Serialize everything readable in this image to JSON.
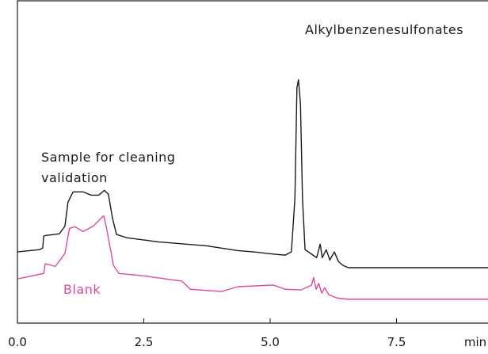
{
  "chart_data": {
    "type": "line",
    "x_label": "min",
    "annotations": [
      "Alkylbenzenesulfonates"
    ],
    "xlim": [
      0,
      9.31
    ],
    "ylim": [
      0,
      100
    ],
    "xticks": [
      {
        "value": 0,
        "label": "0.0"
      },
      2.5,
      {
        "value": 5,
        "label": "5.0"
      },
      7.5
    ],
    "series": [
      {
        "name": "Sample for cleaning validation",
        "color": "#1a1a1a",
        "x": [
          0.0,
          0.44,
          0.5,
          0.52,
          0.56,
          0.83,
          0.94,
          1.0,
          1.1,
          1.3,
          1.46,
          1.61,
          1.72,
          1.8,
          1.88,
          1.96,
          2.16,
          2.79,
          3.73,
          4.36,
          4.67,
          4.95,
          5.14,
          5.3,
          5.42,
          5.49,
          5.53,
          5.56,
          5.6,
          5.64,
          5.69,
          5.92,
          5.99,
          6.03,
          6.11,
          6.18,
          6.27,
          6.35,
          6.44,
          6.55,
          9.31
        ],
        "values": [
          22.1,
          22.8,
          23.3,
          27.0,
          27.2,
          27.7,
          30.1,
          37.5,
          40.7,
          40.7,
          39.7,
          39.7,
          41.2,
          40.0,
          32.6,
          27.5,
          26.5,
          25.2,
          24.0,
          22.5,
          22.1,
          21.6,
          21.3,
          21.1,
          22.1,
          38.7,
          73.0,
          75.5,
          68.1,
          38.7,
          22.8,
          20.3,
          24.5,
          20.3,
          22.8,
          19.6,
          22.1,
          19.1,
          17.9,
          17.2,
          17.2
        ]
      },
      {
        "name": "Blank",
        "color": "#e0489b",
        "x": [
          0.0,
          0.52,
          0.55,
          0.75,
          0.94,
          1.03,
          1.14,
          1.3,
          1.5,
          1.66,
          1.71,
          1.77,
          1.9,
          2.01,
          2.48,
          3.26,
          3.42,
          4.04,
          4.36,
          5.06,
          5.3,
          5.61,
          5.82,
          5.86,
          5.91,
          5.96,
          6.02,
          6.08,
          6.16,
          6.32,
          6.55,
          9.31
        ],
        "values": [
          13.7,
          15.4,
          18.4,
          17.6,
          21.6,
          29.4,
          29.9,
          28.4,
          30.1,
          32.6,
          33.3,
          28.9,
          17.9,
          15.4,
          14.7,
          13.0,
          10.5,
          9.8,
          11.3,
          11.8,
          10.5,
          10.3,
          11.8,
          14.2,
          10.5,
          12.3,
          9.3,
          11.0,
          8.8,
          7.8,
          7.4,
          7.4
        ]
      }
    ]
  }
}
